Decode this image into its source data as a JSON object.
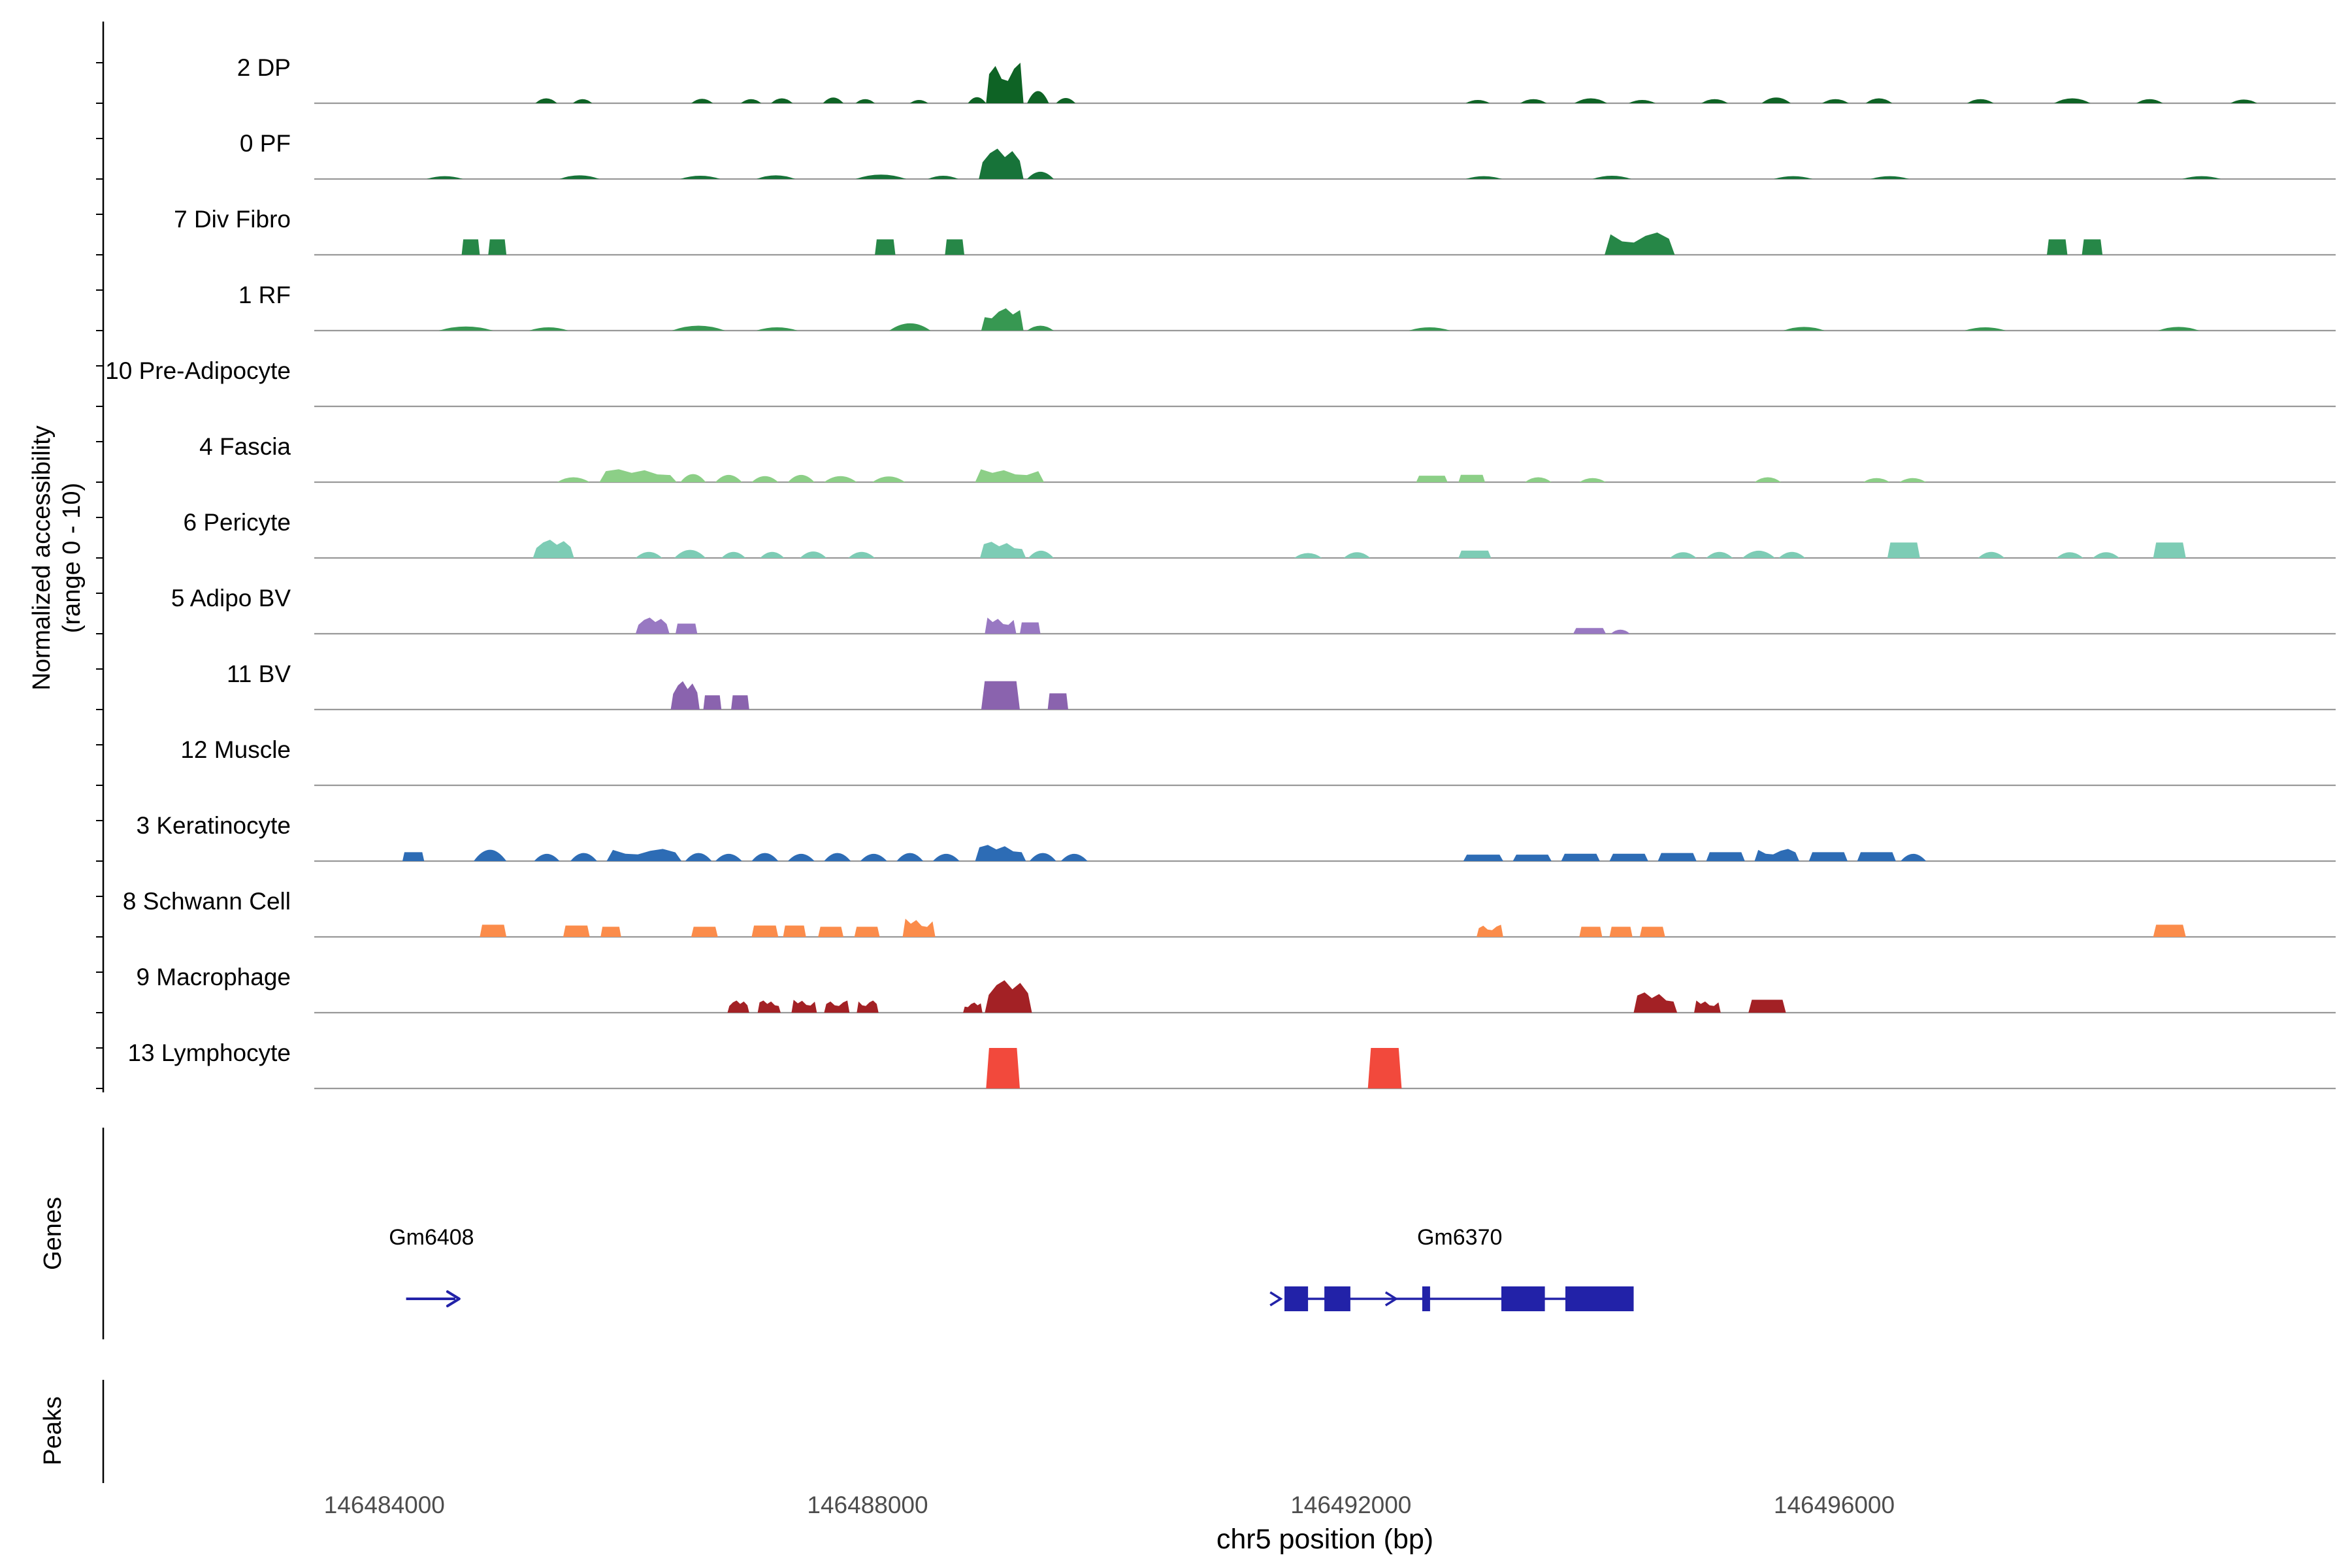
{
  "figure": {
    "ylabel_line1": "Normalized accessibility",
    "ylabel_line2": "(range 0 - 10)",
    "genes_label": "Genes",
    "peaks_label": "Peaks",
    "xlabel": "chr5 position (bp)"
  },
  "chart_data": {
    "type": "area",
    "description": "Genome-browser style chromatin accessibility tracks per cell cluster",
    "region": {
      "chrom": "chr5",
      "start": 146483420,
      "end": 146500150
    },
    "xlabel": "chr5 position (bp)",
    "ylabel": "Normalized accessibility (range 0 - 10)",
    "ylim": [
      0,
      10
    ],
    "x_ticks": [
      146484000,
      146488000,
      146492000,
      146496000
    ],
    "baseline_color": "#999999",
    "gene_color": "#2222a8",
    "peaks_format": "start_bp,end_bp,height_0to10,shape(0=bump,1=block,2=jagged)",
    "tracks": [
      {
        "label": "2 DP",
        "color": "#0e6325",
        "peaks": [
          [
            146485250,
            146485430,
            1.2,
            0
          ],
          [
            146485560,
            146485720,
            1.0,
            0
          ],
          [
            146486540,
            146486720,
            1.1,
            0
          ],
          [
            146486950,
            146487120,
            1.0,
            0
          ],
          [
            146487200,
            146487380,
            1.2,
            0
          ],
          [
            146487630,
            146487800,
            1.4,
            0
          ],
          [
            146487900,
            146488060,
            1.0,
            0
          ],
          [
            146488350,
            146488500,
            0.8,
            0
          ],
          [
            146488830,
            146488980,
            1.5,
            0
          ],
          [
            146488980,
            146489290,
            10,
            2
          ],
          [
            146489320,
            146489500,
            3,
            0
          ],
          [
            146489560,
            146489720,
            1.3,
            0
          ],
          [
            146492950,
            146493150,
            0.8,
            0
          ],
          [
            146493400,
            146493620,
            1.0,
            0
          ],
          [
            146493850,
            146494120,
            1.2,
            0
          ],
          [
            146494300,
            146494520,
            0.8,
            0
          ],
          [
            146494900,
            146495120,
            1.0,
            0
          ],
          [
            146495400,
            146495640,
            1.4,
            0
          ],
          [
            146495900,
            146496120,
            1.0,
            0
          ],
          [
            146496260,
            146496480,
            1.2,
            0
          ],
          [
            146497100,
            146497320,
            1.0,
            0
          ],
          [
            146497820,
            146498120,
            1.2,
            0
          ],
          [
            146498500,
            146498720,
            1.0,
            0
          ],
          [
            146499280,
            146499500,
            0.9,
            0
          ]
        ]
      },
      {
        "label": "0 PF",
        "color": "#177339",
        "peaks": [
          [
            146484350,
            146484650,
            0.7,
            0
          ],
          [
            146485450,
            146485780,
            0.9,
            0
          ],
          [
            146486450,
            146486780,
            0.8,
            0
          ],
          [
            146487080,
            146487400,
            0.9,
            0
          ],
          [
            146487900,
            146488320,
            1.1,
            0
          ],
          [
            146488500,
            146488750,
            0.8,
            0
          ],
          [
            146488920,
            146489290,
            7.5,
            2
          ],
          [
            146489320,
            146489540,
            1.8,
            0
          ],
          [
            146492950,
            146493250,
            0.7,
            0
          ],
          [
            146494000,
            146494320,
            0.8,
            0
          ],
          [
            146495500,
            146495820,
            0.7,
            0
          ],
          [
            146496300,
            146496620,
            0.7,
            0
          ],
          [
            146498880,
            146499200,
            0.7,
            0
          ]
        ]
      },
      {
        "label": "7 Div Fibro",
        "color": "#268747",
        "peaks": [
          [
            146484640,
            146484790,
            3.8,
            1
          ],
          [
            146484860,
            146485010,
            3.8,
            1
          ],
          [
            146488060,
            146488230,
            3.8,
            1
          ],
          [
            146488640,
            146488800,
            3.8,
            1
          ],
          [
            146494100,
            146494680,
            5.5,
            2
          ],
          [
            146497760,
            146497930,
            3.8,
            1
          ],
          [
            146498050,
            146498220,
            3.8,
            1
          ]
        ]
      },
      {
        "label": "1 RF",
        "color": "#379852",
        "peaks": [
          [
            146484450,
            146484900,
            1.0,
            0
          ],
          [
            146485200,
            146485520,
            0.8,
            0
          ],
          [
            146486380,
            146486820,
            1.2,
            0
          ],
          [
            146487080,
            146487420,
            0.8,
            0
          ],
          [
            146488180,
            146488520,
            1.8,
            0
          ],
          [
            146488940,
            146489290,
            5.5,
            2
          ],
          [
            146489320,
            146489540,
            1.2,
            0
          ],
          [
            146492480,
            146492820,
            0.8,
            0
          ],
          [
            146495580,
            146495920,
            0.9,
            0
          ],
          [
            146497080,
            146497420,
            0.8,
            0
          ],
          [
            146498680,
            146499020,
            0.9,
            0
          ]
        ]
      },
      {
        "label": "10 Pre-Adipocyte",
        "color": "#4aa968",
        "peaks": []
      },
      {
        "label": "4 Fascia",
        "color": "#8ccf87",
        "peaks": [
          [
            146485430,
            146485700,
            1.2,
            0
          ],
          [
            146485780,
            146486420,
            3.2,
            2
          ],
          [
            146486450,
            146486660,
            2.0,
            0
          ],
          [
            146486740,
            146486960,
            1.8,
            0
          ],
          [
            146487040,
            146487260,
            1.5,
            0
          ],
          [
            146487340,
            146487560,
            1.8,
            0
          ],
          [
            146487640,
            146487910,
            1.5,
            0
          ],
          [
            146488040,
            146488310,
            1.4,
            0
          ],
          [
            146488890,
            146489460,
            3.2,
            2
          ],
          [
            146492540,
            146492800,
            1.6,
            1
          ],
          [
            146492890,
            146493110,
            1.8,
            1
          ],
          [
            146493440,
            146493660,
            1.2,
            0
          ],
          [
            146493890,
            146494110,
            1.0,
            0
          ],
          [
            146495340,
            146495560,
            1.2,
            0
          ],
          [
            146496240,
            146496460,
            1.0,
            0
          ],
          [
            146496540,
            146496760,
            1.0,
            0
          ]
        ]
      },
      {
        "label": "6 Pericyte",
        "color": "#7dccb5",
        "peaks": [
          [
            146485230,
            146485570,
            4.5,
            2
          ],
          [
            146486080,
            146486300,
            1.5,
            0
          ],
          [
            146486400,
            146486660,
            2.0,
            0
          ],
          [
            146486790,
            146486990,
            1.5,
            0
          ],
          [
            146487110,
            146487310,
            1.5,
            0
          ],
          [
            146487440,
            146487660,
            1.6,
            0
          ],
          [
            146487840,
            146488060,
            1.5,
            0
          ],
          [
            146488930,
            146489310,
            4.0,
            2
          ],
          [
            146489330,
            146489540,
            1.8,
            0
          ],
          [
            146491530,
            146491760,
            1.2,
            0
          ],
          [
            146491940,
            146492160,
            1.4,
            0
          ],
          [
            146492890,
            146493160,
            1.8,
            1
          ],
          [
            146494640,
            146494860,
            1.4,
            0
          ],
          [
            146494940,
            146495160,
            1.5,
            0
          ],
          [
            146495240,
            146495510,
            1.8,
            0
          ],
          [
            146495540,
            146495760,
            1.5,
            0
          ],
          [
            146496440,
            146496710,
            3.8,
            1
          ],
          [
            146497190,
            146497410,
            1.5,
            0
          ],
          [
            146497840,
            146498060,
            1.4,
            0
          ],
          [
            146498140,
            146498360,
            1.4,
            0
          ],
          [
            146498640,
            146498910,
            3.8,
            1
          ]
        ]
      },
      {
        "label": "5 Adipo BV",
        "color": "#9878c2",
        "peaks": [
          [
            146486080,
            146486360,
            4.0,
            2
          ],
          [
            146486410,
            146486590,
            2.5,
            1
          ],
          [
            146488970,
            146489230,
            4.0,
            2
          ],
          [
            146489260,
            146489430,
            2.8,
            1
          ],
          [
            146493840,
            146494110,
            1.4,
            1
          ],
          [
            146494150,
            146494310,
            1.0,
            0
          ]
        ]
      },
      {
        "label": "11 BV",
        "color": "#8a63ae",
        "peaks": [
          [
            146486370,
            146486610,
            7.0,
            2
          ],
          [
            146486640,
            146486790,
            3.5,
            1
          ],
          [
            146486870,
            146487020,
            3.5,
            1
          ],
          [
            146488940,
            146489260,
            7.0,
            1
          ],
          [
            146489490,
            146489660,
            4.0,
            1
          ]
        ]
      },
      {
        "label": "12 Muscle",
        "color": "#7d55a5",
        "peaks": []
      },
      {
        "label": "3 Keratinocyte",
        "color": "#2d6cb5",
        "peaks": [
          [
            146484150,
            146484330,
            2.2,
            1
          ],
          [
            146484740,
            146485010,
            2.8,
            0
          ],
          [
            146485240,
            146485450,
            1.8,
            0
          ],
          [
            146485540,
            146485760,
            2.0,
            0
          ],
          [
            146485840,
            146486460,
            3.0,
            2
          ],
          [
            146486490,
            146486710,
            2.0,
            0
          ],
          [
            146486740,
            146486960,
            1.8,
            0
          ],
          [
            146487040,
            146487260,
            2.0,
            0
          ],
          [
            146487340,
            146487560,
            1.8,
            0
          ],
          [
            146487640,
            146487860,
            2.0,
            0
          ],
          [
            146487940,
            146488160,
            1.8,
            0
          ],
          [
            146488240,
            146488460,
            2.0,
            0
          ],
          [
            146488540,
            146488760,
            1.8,
            0
          ],
          [
            146488890,
            146489310,
            4.0,
            2
          ],
          [
            146489340,
            146489560,
            2.0,
            0
          ],
          [
            146489600,
            146489820,
            1.8,
            0
          ],
          [
            146492930,
            146493260,
            1.6,
            1
          ],
          [
            146493340,
            146493660,
            1.6,
            1
          ],
          [
            146493740,
            146494060,
            1.8,
            1
          ],
          [
            146494140,
            146494460,
            1.8,
            1
          ],
          [
            146494540,
            146494860,
            2.0,
            1
          ],
          [
            146494940,
            146495260,
            2.2,
            1
          ],
          [
            146495340,
            146495710,
            3.0,
            2
          ],
          [
            146495790,
            146496110,
            2.2,
            1
          ],
          [
            146496190,
            146496510,
            2.2,
            1
          ],
          [
            146496550,
            146496760,
            1.8,
            0
          ]
        ]
      },
      {
        "label": "8 Schwann Cell",
        "color": "#fb8c4b",
        "peaks": [
          [
            146484790,
            146485010,
            3.0,
            1
          ],
          [
            146485480,
            146485700,
            2.8,
            1
          ],
          [
            146485790,
            146485960,
            2.5,
            1
          ],
          [
            146486540,
            146486760,
            2.5,
            1
          ],
          [
            146487040,
            146487260,
            2.8,
            1
          ],
          [
            146487300,
            146487490,
            2.8,
            1
          ],
          [
            146487590,
            146487800,
            2.5,
            1
          ],
          [
            146487890,
            146488100,
            2.5,
            1
          ],
          [
            146488290,
            146488560,
            4.5,
            2
          ],
          [
            146493040,
            146493260,
            3.0,
            2
          ],
          [
            146493890,
            146494080,
            2.5,
            1
          ],
          [
            146494140,
            146494330,
            2.5,
            1
          ],
          [
            146494390,
            146494600,
            2.5,
            1
          ],
          [
            146498640,
            146498910,
            3.0,
            1
          ]
        ]
      },
      {
        "label": "9 Macrophage",
        "color": "#a32125",
        "peaks": [
          [
            146486840,
            146487020,
            3.0,
            2
          ],
          [
            146487090,
            146487280,
            3.0,
            2
          ],
          [
            146487370,
            146487580,
            3.2,
            2
          ],
          [
            146487640,
            146487850,
            3.0,
            2
          ],
          [
            146487910,
            146488090,
            3.0,
            2
          ],
          [
            146488790,
            146488950,
            2.5,
            2
          ],
          [
            146488970,
            146489360,
            8.0,
            2
          ],
          [
            146494340,
            146494700,
            5.0,
            2
          ],
          [
            146494840,
            146495060,
            3.0,
            2
          ],
          [
            146495290,
            146495600,
            3.2,
            1
          ]
        ]
      },
      {
        "label": "13 Lymphocyte",
        "color": "#f2493c",
        "peaks": [
          [
            146488980,
            146489260,
            10,
            1
          ],
          [
            146492140,
            146492420,
            10,
            1
          ]
        ]
      }
    ],
    "genes": [
      {
        "name": "Gm6408",
        "strand": "+",
        "start": 146484180,
        "end": 146484620,
        "style": "arrow",
        "exons": [],
        "chevrons": [],
        "label_bp": 146484390
      },
      {
        "name": "Gm6370",
        "strand": "+",
        "start": 146491450,
        "end": 146494340,
        "style": "model",
        "exons": [
          [
            146491450,
            146491645
          ],
          [
            146491780,
            146491995
          ],
          [
            146492590,
            146492655
          ],
          [
            146493245,
            146493605
          ],
          [
            146493775,
            146494340
          ]
        ],
        "chevrons": [
          146491375,
          146492330
        ],
        "label_bp": 146492900
      }
    ],
    "peaks": []
  }
}
